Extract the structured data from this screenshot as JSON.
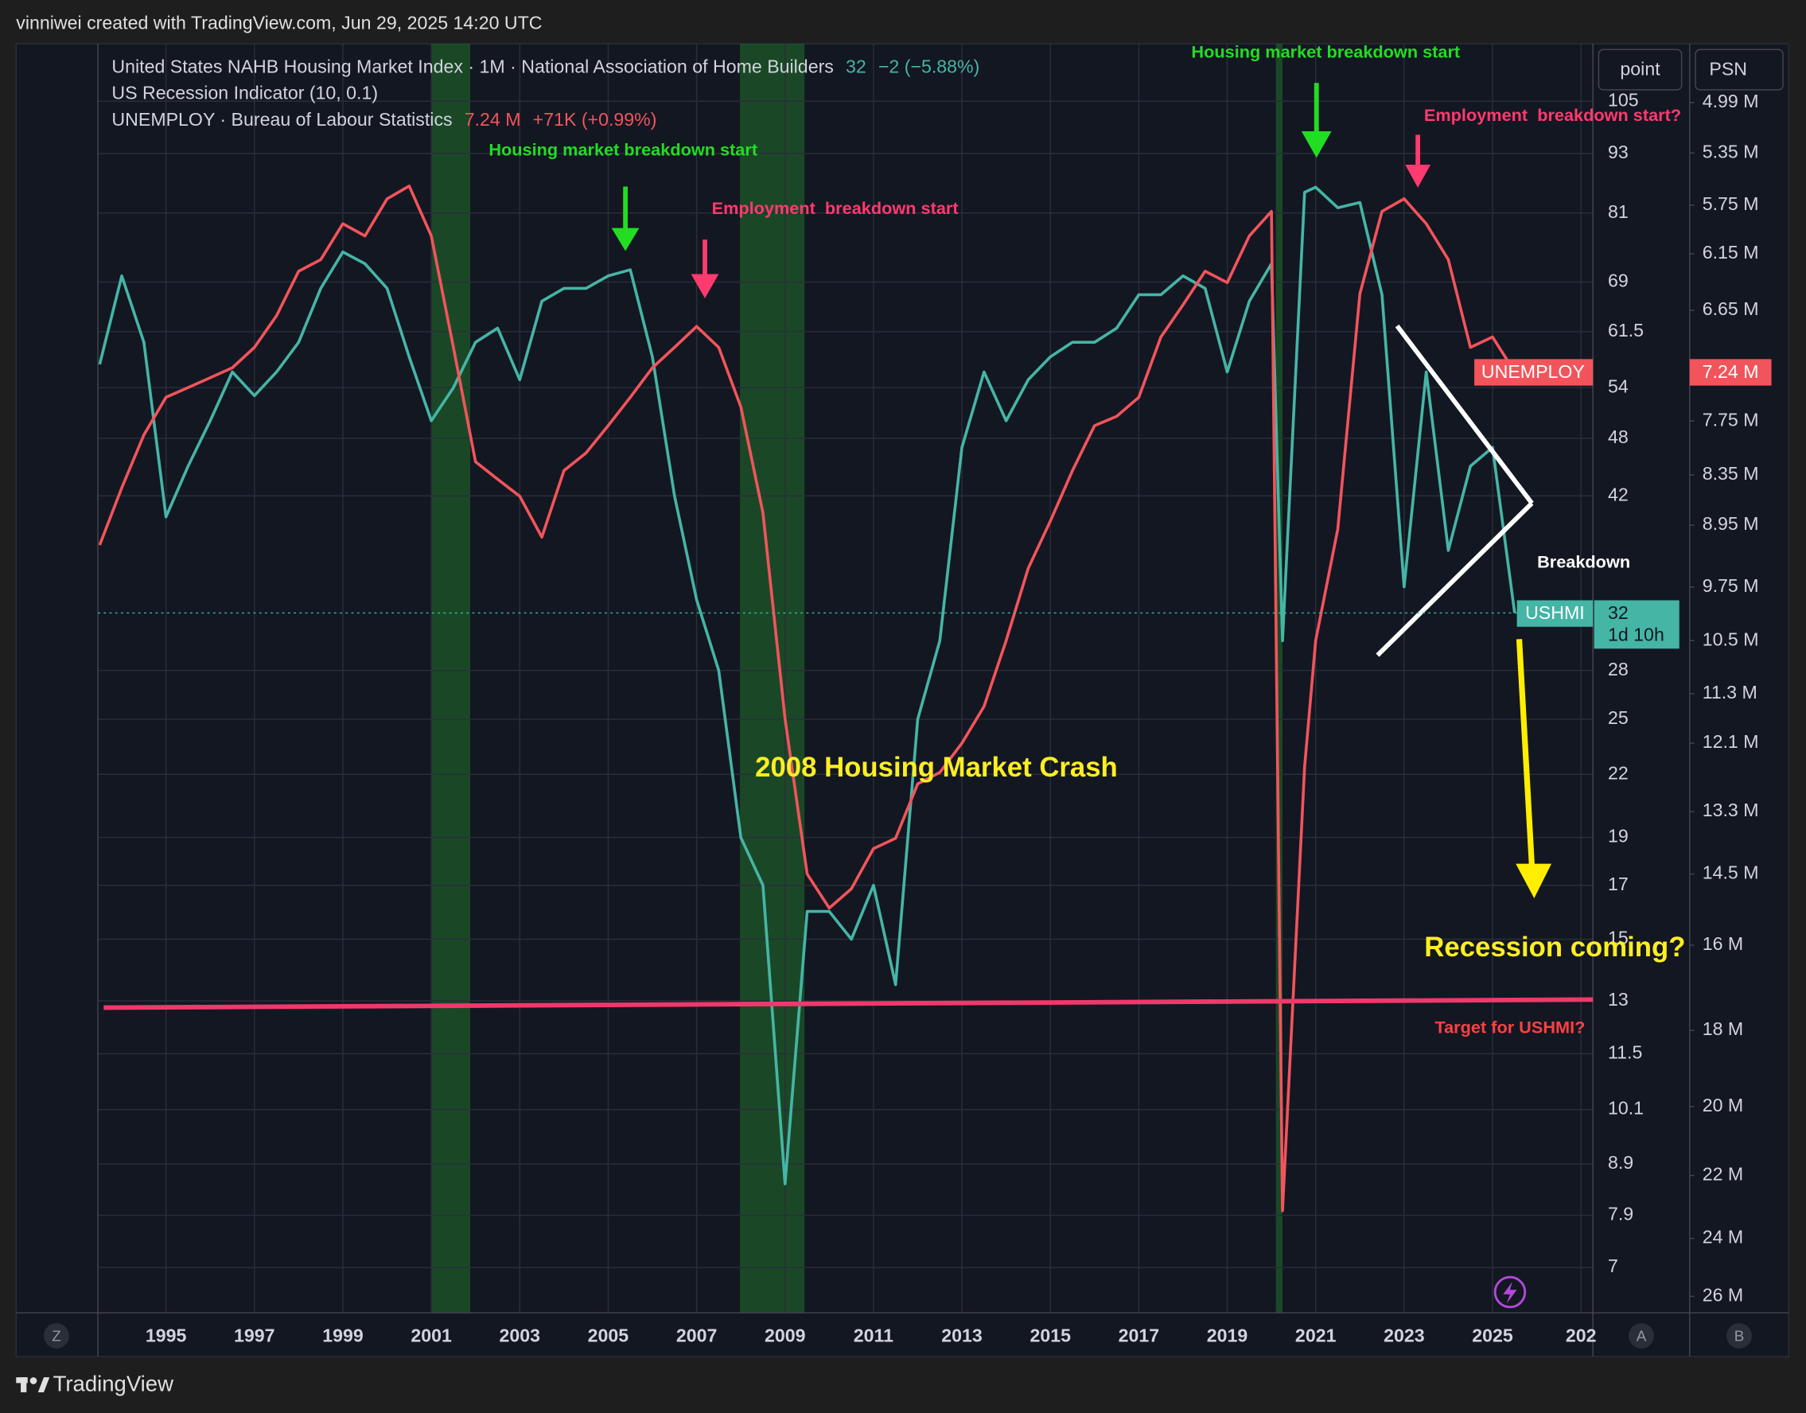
{
  "header": {
    "credit": "vinniwei created with TradingView.com, Jun 29, 2025 14:20 UTC",
    "brand": "TradingView"
  },
  "toolbar": [
    "point",
    "PSN"
  ],
  "axis_buttons": [
    "Z",
    "A",
    "B"
  ],
  "chart_data": {
    "type": "line",
    "legend": [
      {
        "name": "United States NAHB Housing Market Index · 1M · National Association of Home Builders",
        "value": "32",
        "change": "−2 (−5.88%)",
        "color": "#45b5a5"
      },
      {
        "name": "US Recession Indicator (10, 0.1)"
      },
      {
        "name": "UNEMPLOY · Bureau of Labour Statistics",
        "value": "7.24 M",
        "change": "+71K (+0.99%)",
        "color": "#f2545b"
      }
    ],
    "x": [
      1993.5,
      1994,
      1994.5,
      1995,
      1995.5,
      1996,
      1996.5,
      1997,
      1997.5,
      1998,
      1998.5,
      1999,
      1999.5,
      2000,
      2000.5,
      2001,
      2001.5,
      2002,
      2002.5,
      2003,
      2003.5,
      2004,
      2004.5,
      2005,
      2005.5,
      2006,
      2006.5,
      2007,
      2007.5,
      2008,
      2008.5,
      2009,
      2009.5,
      2010,
      2010.5,
      2011,
      2011.5,
      2012,
      2012.5,
      2013,
      2013.5,
      2014,
      2014.5,
      2015,
      2015.5,
      2016,
      2016.5,
      2017,
      2017.5,
      2018,
      2018.5,
      2019,
      2019.5,
      2020,
      2020.25,
      2020.75,
      2021,
      2021.5,
      2022,
      2022.5,
      2023,
      2023.5,
      2024,
      2024.5,
      2025,
      2025.5
    ],
    "series": [
      {
        "name": "USHMI",
        "color": "#45b5a5",
        "axis": "y",
        "values": [
          57,
          70,
          60,
          40,
          45,
          50,
          56,
          53,
          56,
          60,
          68,
          74,
          72,
          68,
          58,
          50,
          54,
          60,
          62,
          55,
          66,
          68,
          68,
          70,
          71,
          58,
          42,
          33,
          28,
          19,
          17,
          8.5,
          16,
          16,
          15,
          17,
          13.5,
          25,
          30,
          47,
          56,
          50,
          55,
          58,
          60,
          60,
          62,
          67,
          67,
          70,
          68,
          56,
          66,
          72,
          30,
          85,
          86,
          82,
          83,
          67,
          34,
          56,
          37,
          45,
          47,
          32
        ],
        "tag_label": "32",
        "tag_extra": "1d 10h"
      },
      {
        "name": "UNEMPLOY",
        "color": "#f2545b",
        "axis": "y2",
        "values": [
          9.2,
          8.5,
          7.9,
          7.5,
          7.4,
          7.3,
          7.2,
          7.0,
          6.7,
          6.3,
          6.2,
          5.9,
          6.0,
          5.7,
          5.6,
          6.0,
          7.0,
          8.2,
          8.4,
          8.6,
          9.1,
          8.3,
          8.1,
          7.8,
          7.5,
          7.2,
          7.0,
          6.8,
          7.0,
          7.6,
          8.8,
          11.7,
          14.5,
          15.2,
          14.8,
          14.0,
          13.8,
          12.8,
          12.6,
          12.1,
          11.5,
          10.5,
          9.5,
          8.9,
          8.3,
          7.8,
          7.7,
          7.5,
          6.9,
          6.6,
          6.3,
          6.4,
          6.0,
          5.8,
          23.1,
          12.5,
          10.5,
          9.0,
          6.5,
          5.8,
          5.7,
          5.9,
          6.2,
          7.0,
          6.9,
          7.24
        ],
        "tag_label": "7.24 M"
      }
    ],
    "recessions": [
      {
        "start": 2001.0,
        "end": 2001.88
      },
      {
        "start": 2007.98,
        "end": 2009.44
      },
      {
        "start": 2020.1,
        "end": 2020.25
      }
    ],
    "recession_color": "#1e5a2a",
    "xlim": [
      1993.46,
      2027.27
    ],
    "xticks": [
      1995,
      1997,
      1999,
      2001,
      2003,
      2005,
      2007,
      2009,
      2011,
      2013,
      2015,
      2017,
      2019,
      2021,
      2023,
      2025,
      {
        "value": 2027,
        "label": "202"
      }
    ],
    "ylim": [
      6.3,
      120
    ],
    "yticks": [
      105,
      93,
      81,
      69,
      61.5,
      54,
      48,
      42,
      28,
      25,
      22,
      19,
      17,
      15,
      13,
      11.5,
      10.1,
      8.9,
      7.9,
      7
    ],
    "y2lim": [
      26.6,
      4.6
    ],
    "y2ticks": [
      {
        "value": 4.99,
        "label": "4.99 M"
      },
      {
        "value": 5.35,
        "label": "5.35 M"
      },
      {
        "value": 5.75,
        "label": "5.75 M"
      },
      {
        "value": 6.15,
        "label": "6.15 M"
      },
      {
        "value": 6.65,
        "label": "6.65 M"
      },
      {
        "value": 7.75,
        "label": "7.75 M"
      },
      {
        "value": 8.35,
        "label": "8.35 M"
      },
      {
        "value": 8.95,
        "label": "8.95 M"
      },
      {
        "value": 9.75,
        "label": "9.75 M"
      },
      {
        "value": 10.5,
        "label": "10.5 M"
      },
      {
        "value": 11.3,
        "label": "11.3 M"
      },
      {
        "value": 12.1,
        "label": "12.1 M"
      },
      {
        "value": 13.3,
        "label": "13.3 M"
      },
      {
        "value": 14.5,
        "label": "14.5 M"
      },
      {
        "value": 16,
        "label": "16 M"
      },
      {
        "value": 18,
        "label": "18 M"
      },
      {
        "value": 20,
        "label": "20 M"
      },
      {
        "value": 22,
        "label": "22 M"
      },
      {
        "value": 24,
        "label": "24 M"
      },
      {
        "value": 26,
        "label": "26 M"
      }
    ],
    "log_scale": true,
    "grid": true,
    "annotations": [
      {
        "text": "Housing market breakdown start",
        "color": "#22dd22"
      },
      {
        "text": "Employment  breakdown start",
        "color": "#ff3a6e"
      },
      {
        "text": "Housing market breakdown start",
        "color": "#22dd22"
      },
      {
        "text": "Employment  breakdown start?",
        "color": "#ff3a6e"
      },
      {
        "text": "2008 Housing Market Crash",
        "color": "#ffee22"
      },
      {
        "text": "Breakdown",
        "color": "#ffffff"
      },
      {
        "text": "Recession coming?",
        "color": "#ffee22"
      },
      {
        "text": "Target for USHMI?",
        "color": "#ff4040"
      }
    ]
  }
}
